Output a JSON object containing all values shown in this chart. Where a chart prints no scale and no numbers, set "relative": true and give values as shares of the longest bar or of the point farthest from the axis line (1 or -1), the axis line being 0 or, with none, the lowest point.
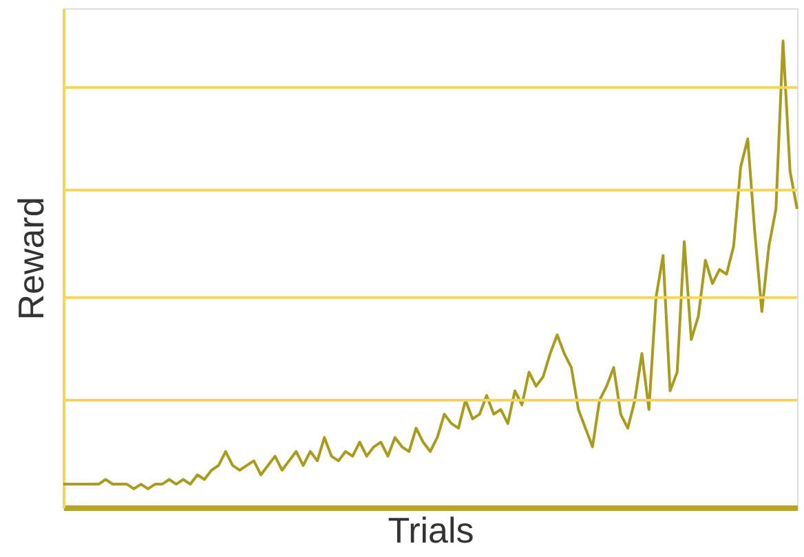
{
  "chart_data": {
    "type": "line",
    "relative": true,
    "xlabel": "Trials",
    "ylabel": "Reward",
    "tick_labels": false,
    "ref_lines": [
      {
        "axis": "y",
        "value": 0.23,
        "color": "#f2d75a"
      },
      {
        "axis": "y",
        "value": 0.45,
        "color": "#f2d75a"
      },
      {
        "axis": "y",
        "value": 0.68,
        "color": "#f2d75a"
      },
      {
        "axis": "y",
        "value": 0.9,
        "color": "#f2d75a"
      }
    ],
    "categories": [
      null,
      null,
      null,
      null,
      null,
      null,
      null,
      null,
      null,
      null,
      null,
      null,
      null,
      null,
      null,
      null,
      null,
      null,
      null,
      null,
      null,
      null,
      null,
      null,
      null,
      null,
      null,
      null,
      null,
      null,
      null,
      null,
      null,
      null,
      null,
      null,
      null,
      null,
      null,
      null,
      null,
      null,
      null,
      null,
      null,
      null,
      null,
      null,
      null,
      null,
      null,
      null,
      null,
      null,
      null,
      null,
      null,
      null,
      null,
      null,
      null,
      null,
      null,
      null,
      null,
      null,
      null,
      null,
      null,
      null,
      null,
      null,
      null,
      null,
      null,
      null,
      null,
      null,
      null,
      null,
      null,
      null,
      null,
      null,
      null,
      null,
      null,
      null,
      null,
      null,
      null,
      null,
      null,
      null,
      null,
      null,
      null,
      null,
      null,
      null,
      null,
      null,
      null,
      null,
      null
    ],
    "series": [
      {
        "color": "#a89c1e",
        "values": [
          0.05,
          0.05,
          0.05,
          0.05,
          0.05,
          0.05,
          0.06,
          0.05,
          0.05,
          0.05,
          0.04,
          0.05,
          0.04,
          0.05,
          0.05,
          0.06,
          0.05,
          0.06,
          0.05,
          0.07,
          0.06,
          0.08,
          0.09,
          0.12,
          0.09,
          0.08,
          0.09,
          0.1,
          0.07,
          0.09,
          0.11,
          0.08,
          0.1,
          0.12,
          0.09,
          0.12,
          0.1,
          0.15,
          0.11,
          0.1,
          0.12,
          0.11,
          0.14,
          0.11,
          0.13,
          0.14,
          0.11,
          0.15,
          0.13,
          0.12,
          0.17,
          0.14,
          0.12,
          0.15,
          0.2,
          0.18,
          0.17,
          0.23,
          0.19,
          0.2,
          0.24,
          0.2,
          0.21,
          0.18,
          0.25,
          0.22,
          0.29,
          0.26,
          0.28,
          0.33,
          0.37,
          0.33,
          0.3,
          0.21,
          0.17,
          0.13,
          0.23,
          0.26,
          0.3,
          0.2,
          0.17,
          0.23,
          0.33,
          0.21,
          0.45,
          0.54,
          0.25,
          0.29,
          0.57,
          0.36,
          0.41,
          0.53,
          0.48,
          0.51,
          0.5,
          0.56,
          0.73,
          0.79,
          0.59,
          0.42,
          0.56,
          0.64,
          1.0,
          0.72,
          0.64
        ]
      }
    ]
  }
}
